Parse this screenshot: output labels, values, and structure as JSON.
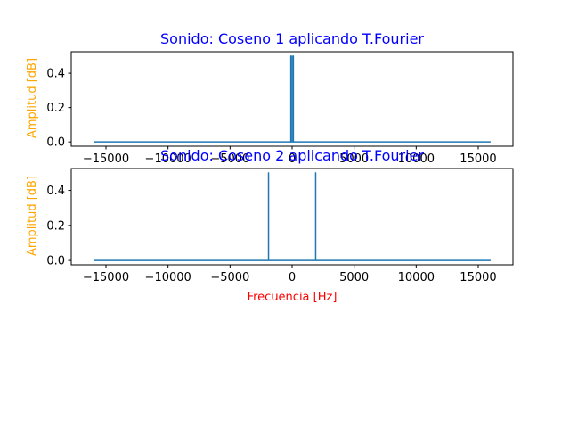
{
  "colors": {
    "title": "#0000ff",
    "ylabel": "#ffa500",
    "xlabel": "#ff0000",
    "line": "#1f77b4"
  },
  "chart_data": [
    {
      "type": "line",
      "title": "Sonido: Coseno 1 aplicando T.Fourier",
      "xlabel": "",
      "ylabel": "Amplitud [dB]",
      "xlim": [
        -17800,
        17800
      ],
      "ylim": [
        -0.025,
        0.525
      ],
      "xticks": [
        -15000,
        -10000,
        -5000,
        0,
        5000,
        10000,
        15000
      ],
      "xtick_labels": [
        "−15000",
        "−10000",
        "−5000",
        "0",
        "5000",
        "10000",
        "15000"
      ],
      "yticks": [
        0.0,
        0.2,
        0.4
      ],
      "ytick_labels": [
        "0.0",
        "0.2",
        "0.4"
      ],
      "grid": false,
      "series": [
        {
          "x": [
            -16000,
            -100,
            -100,
            -100,
            -60,
            -60,
            -60,
            60,
            60,
            60,
            100,
            100,
            100,
            16000
          ],
          "y": [
            0,
            0,
            0.5,
            0,
            0,
            0.5,
            0,
            0,
            0.5,
            0,
            0,
            0.5,
            0,
            0
          ]
        }
      ]
    },
    {
      "type": "line",
      "title": "Sonido: Coseno 2 aplicando T.Fourier",
      "xlabel": "Frecuencia [Hz]",
      "ylabel": "Amplitud [dB]",
      "xlim": [
        -17800,
        17800
      ],
      "ylim": [
        -0.025,
        0.525
      ],
      "xticks": [
        -15000,
        -10000,
        -5000,
        0,
        5000,
        10000,
        15000
      ],
      "xtick_labels": [
        "−15000",
        "−10000",
        "−5000",
        "0",
        "5000",
        "10000",
        "15000"
      ],
      "yticks": [
        0.0,
        0.2,
        0.4
      ],
      "ytick_labels": [
        "0.0",
        "0.2",
        "0.4"
      ],
      "grid": false,
      "series": [
        {
          "x": [
            -16000,
            -1900,
            -1900,
            -1900,
            1900,
            1900,
            1900,
            16000
          ],
          "y": [
            0,
            0,
            0.5,
            0,
            0,
            0.5,
            0,
            0
          ]
        }
      ]
    }
  ]
}
